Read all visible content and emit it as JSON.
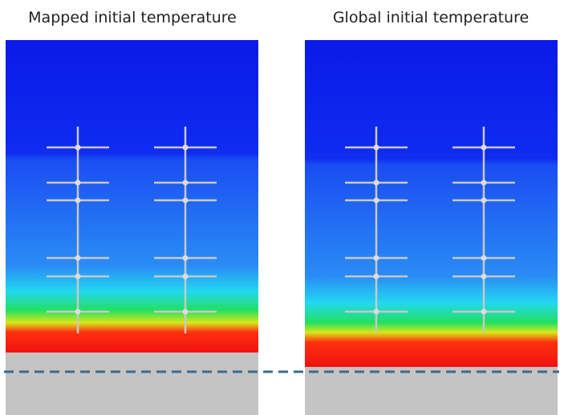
{
  "panels": [
    {
      "title": "Mapped initial temperature"
    },
    {
      "title": "Global initial temperature"
    }
  ]
}
